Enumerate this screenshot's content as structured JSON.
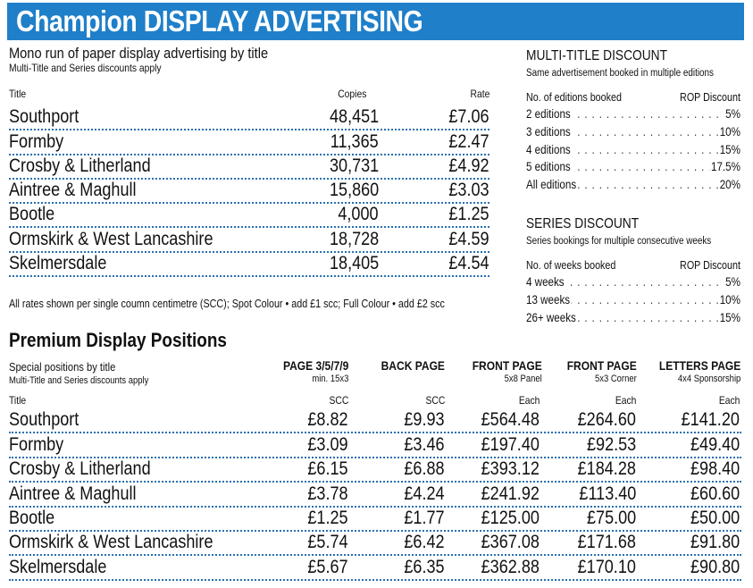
{
  "banner": {
    "title": "Champion DISPLAY ADVERTISING",
    "color": "#1f7fc9"
  },
  "mono": {
    "heading": "Mono run of paper display advertising by title",
    "subheading": "Multi-Title and Series discounts apply",
    "columns": {
      "title": "Title",
      "copies": "Copies",
      "rate": "Rate"
    },
    "rows": [
      {
        "title": "Southport",
        "copies": "48,451",
        "rate": "£7.06"
      },
      {
        "title": "Formby",
        "copies": "11,365",
        "rate": "£2.47"
      },
      {
        "title": "Crosby & Litherland",
        "copies": "30,731",
        "rate": "£4.92"
      },
      {
        "title": "Aintree & Maghull",
        "copies": "15,860",
        "rate": "£3.03"
      },
      {
        "title": "Bootle",
        "copies": "4,000",
        "rate": "£1.25"
      },
      {
        "title": "Ormskirk & West Lancashire",
        "copies": "18,728",
        "rate": "£4.59"
      },
      {
        "title": "Skelmersdale",
        "copies": "18,405",
        "rate": "£4.54"
      }
    ],
    "note": "All rates shown per single coumn centimetre (SCC); Spot Colour • add £1 scc; Full Colour • add £2 scc"
  },
  "multi_title": {
    "heading": "MULTI-TITLE DISCOUNT",
    "subheading": "Same advertisement booked in multiple editions",
    "col_label": "No. of editions booked",
    "col_value": "ROP Discount",
    "rows": [
      {
        "label": "2 editions",
        "value": "5%"
      },
      {
        "label": "3 editions",
        "value": "10%"
      },
      {
        "label": "4 editions",
        "value": "15%"
      },
      {
        "label": "5 editions",
        "value": "17.5%"
      },
      {
        "label": "All editions",
        "value": "20%"
      }
    ]
  },
  "series": {
    "heading": "SERIES DISCOUNT",
    "subheading": "Series bookings for multiple consecutive weeks",
    "col_label": "No. of weeks booked",
    "col_value": "ROP Discount",
    "rows": [
      {
        "label": "4 weeks",
        "value": "5%"
      },
      {
        "label": "13 weeks",
        "value": "10%"
      },
      {
        "label": "26+ weeks",
        "value": "15%"
      }
    ]
  },
  "premium": {
    "heading": "Premium Display Positions",
    "subheading": "Special positions by title",
    "subheading2": "Multi-Title and Series discounts apply",
    "columns": [
      {
        "title": "PAGE 3/5/7/9",
        "sub": "min. 15x3",
        "unit": "SCC"
      },
      {
        "title": "BACK PAGE",
        "sub": "",
        "unit": "SCC"
      },
      {
        "title": "FRONT PAGE",
        "sub": "5x8 Panel",
        "unit": "Each"
      },
      {
        "title": "FRONT PAGE",
        "sub": "5x3 Corner",
        "unit": "Each"
      },
      {
        "title": "LETTERS PAGE",
        "sub": "4x4 Sponsorship",
        "unit": "Each"
      }
    ],
    "title_label": "Title",
    "rows": [
      {
        "title": "Southport",
        "v": [
          "£8.82",
          "£9.93",
          "£564.48",
          "£264.60",
          "£141.20"
        ]
      },
      {
        "title": "Formby",
        "v": [
          "£3.09",
          "£3.46",
          "£197.40",
          "£92.53",
          "£49.40"
        ]
      },
      {
        "title": "Crosby & Litherland",
        "v": [
          "£6.15",
          "£6.88",
          "£393.12",
          "£184.28",
          "£98.40"
        ]
      },
      {
        "title": "Aintree & Maghull",
        "v": [
          "£3.78",
          "£4.24",
          "£241.92",
          "£113.40",
          "£60.60"
        ]
      },
      {
        "title": "Bootle",
        "v": [
          "£1.25",
          "£1.77",
          "£125.00",
          "£75.00",
          "£50.00"
        ]
      },
      {
        "title": "Ormskirk & West Lancashire",
        "v": [
          "£5.74",
          "£6.42",
          "£367.08",
          "£171.68",
          "£91.80"
        ]
      },
      {
        "title": "Skelmersdale",
        "v": [
          "£5.67",
          "£6.35",
          "£362.88",
          "£170.10",
          "£90.80"
        ]
      }
    ]
  }
}
